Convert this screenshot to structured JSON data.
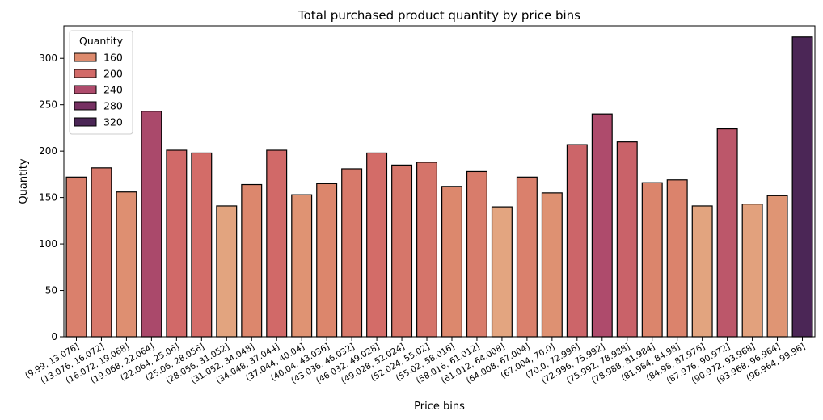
{
  "chart_data": {
    "type": "bar",
    "title": "Total purchased product quantity by price bins",
    "xlabel": "Price bins",
    "ylabel": "Quantity",
    "ylim": [
      0,
      335
    ],
    "yticks": [
      0,
      50,
      100,
      150,
      200,
      250,
      300
    ],
    "categories": [
      "(9.99, 13.076]",
      "(13.076, 16.072]",
      "(16.072, 19.068]",
      "(19.068, 22.064]",
      "(22.064, 25.06]",
      "(25.06, 28.056]",
      "(28.056, 31.052]",
      "(31.052, 34.048]",
      "(34.048, 37.044]",
      "(37.044, 40.04]",
      "(40.04, 43.036]",
      "(43.036, 46.032]",
      "(46.032, 49.028]",
      "(49.028, 52.024]",
      "(52.024, 55.02]",
      "(55.02, 58.016]",
      "(58.016, 61.012]",
      "(61.012, 64.008]",
      "(64.008, 67.004]",
      "(67.004, 70.0]",
      "(70.0, 72.996]",
      "(72.996, 75.992]",
      "(75.992, 78.988]",
      "(78.988, 81.984]",
      "(81.984, 84.98]",
      "(84.98, 87.976]",
      "(87.976, 90.972]",
      "(90.972, 93.968]",
      "(93.968, 96.964]",
      "(96.964, 99.96]"
    ],
    "values": [
      172,
      182,
      156,
      243,
      201,
      198,
      141,
      164,
      201,
      153,
      165,
      181,
      198,
      185,
      188,
      162,
      178,
      140,
      172,
      155,
      207,
      240,
      210,
      166,
      169,
      141,
      224,
      143,
      152,
      323
    ],
    "hue": "Quantity",
    "palette": "flare",
    "bar_edge_color": "#000000",
    "grid": false,
    "legend": {
      "title": "Quantity",
      "position": "top-left",
      "entries": [
        {
          "label": "160",
          "value": 160,
          "color": "#dd8a6d"
        },
        {
          "label": "200",
          "value": 200,
          "color": "#d26a68"
        },
        {
          "label": "240",
          "value": 240,
          "color": "#ae4b6c"
        },
        {
          "label": "280",
          "value": 280,
          "color": "#763062"
        },
        {
          "label": "320",
          "value": 320,
          "color": "#4b2656"
        }
      ]
    }
  }
}
